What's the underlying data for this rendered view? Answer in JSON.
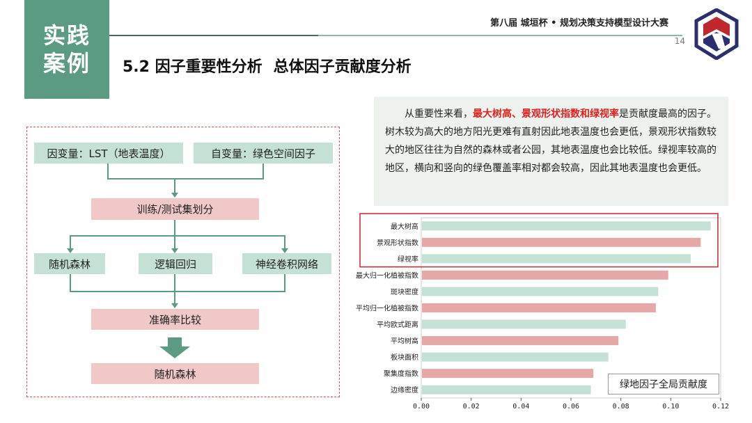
{
  "badge": {
    "line1": "实践",
    "line2": "案例"
  },
  "header": {
    "competition": "第八届 城垣杯 • 规划决策支持模型设计大赛",
    "page_number": "14"
  },
  "title": {
    "main": "5.2 因子重要性分析",
    "sub": "总体因子贡献度分析"
  },
  "flow": {
    "dependent_var": "因变量：LST（地表温度）",
    "independent_var": "自变量：绿色空间因子",
    "split": "训练/测试集划分",
    "models": [
      "随机森林",
      "逻辑回归",
      "神经卷积网络"
    ],
    "compare": "准确率比较",
    "result": "随机森林"
  },
  "description": {
    "prefix": "从重要性来看，",
    "highlight": "最大树高、景观形状指数和绿视率",
    "suffix": "是贡献度最高的因子。树木较为高大的地方阳光更难有直射因此地表温度也会更低，景观形状指数较大的地区往往为自然的森林或者公园，其地表温度也会比较低。绿视率较高的地区，横向和竖向的绿色覆盖率相对都会较高，因此其地表温度也会更低。"
  },
  "chart_data": {
    "type": "bar",
    "orientation": "horizontal",
    "categories": [
      "最大树高",
      "景观形状指数",
      "绿视率",
      "最大归一化植被指数",
      "斑块密度",
      "平均归一化植被指数",
      "平均欧式距离",
      "平均树高",
      "板块面积",
      "聚集度指数",
      "边缘密度"
    ],
    "values": [
      0.116,
      0.112,
      0.108,
      0.099,
      0.095,
      0.094,
      0.082,
      0.079,
      0.075,
      0.069,
      0.068
    ],
    "bar_colors": [
      "#c5e0d4",
      "#e6a7a7",
      "#c5e0d4",
      "#e6a7a7",
      "#c5e0d4",
      "#e6a7a7",
      "#c5e0d4",
      "#e6a7a7",
      "#c5e0d4",
      "#e6a7a7",
      "#c5e0d4"
    ],
    "xlim": [
      0,
      0.12
    ],
    "xticks": [
      "0.00",
      "0.02",
      "0.04",
      "0.06",
      "0.08",
      "0.10",
      "0.12"
    ],
    "legend": "绿地因子全局贡献度",
    "highlight_top_n": 3,
    "highlight_color": "#c0282d"
  }
}
